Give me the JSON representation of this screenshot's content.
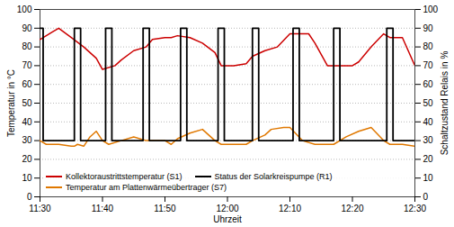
{
  "chart_data": {
    "type": "line",
    "xlabel": "Uhrzeit",
    "ylabel": "Temperatur in °C",
    "y2label": "Schaltzustand Relais in %",
    "xlim": [
      0,
      60
    ],
    "xticks": [
      {
        "value": 0,
        "label": "11:30"
      },
      {
        "value": 10,
        "label": "11:40"
      },
      {
        "value": 20,
        "label": "11:50"
      },
      {
        "value": 30,
        "label": "12:00"
      },
      {
        "value": 40,
        "label": "12:10"
      },
      {
        "value": 50,
        "label": "12:20"
      },
      {
        "value": 60,
        "label": "12:30"
      }
    ],
    "ylim": [
      0,
      100
    ],
    "yticks": [
      0,
      10,
      20,
      30,
      40,
      50,
      60,
      70,
      80,
      90,
      100
    ],
    "y2lim": [
      0,
      100
    ],
    "y2ticks": [
      0,
      10,
      20,
      30,
      40,
      50,
      60,
      70,
      80,
      90,
      100
    ],
    "grid": true,
    "legend": "lower left",
    "series": [
      {
        "name": "Kollektoraustrittstemperatur (S1)",
        "color": "#cc0000",
        "x": [
          0,
          1,
          2,
          3,
          5,
          7,
          9,
          10,
          12,
          13,
          15,
          17,
          18,
          20,
          21,
          22,
          24,
          26,
          28,
          29,
          31,
          33,
          34,
          36,
          38,
          40,
          41,
          43,
          44,
          46,
          48,
          50,
          51,
          53,
          55,
          56,
          58,
          60
        ],
        "values": [
          84,
          86,
          88,
          90,
          85,
          80,
          74,
          68,
          70,
          73,
          78,
          80,
          84,
          85,
          85,
          86,
          85,
          82,
          77,
          70,
          70,
          71,
          75,
          78,
          80,
          87,
          87,
          87,
          82,
          70,
          70,
          70,
          72,
          80,
          87,
          85,
          85,
          70
        ]
      },
      {
        "name": "Status der Solarkreispumpe (R1)",
        "color": "#000000",
        "x": [
          0,
          0.5,
          0.5,
          5.5,
          5.5,
          6.5,
          6.5,
          10.5,
          10.5,
          11.5,
          11.5,
          16.5,
          16.5,
          17.5,
          17.5,
          22.5,
          22.5,
          23.5,
          23.5,
          28.5,
          28.5,
          29.5,
          29.5,
          34,
          34,
          35,
          35,
          40.5,
          40.5,
          41.5,
          41.5,
          47,
          47,
          48,
          48,
          55.5,
          55.5,
          56.5,
          56.5,
          60
        ],
        "values": [
          90,
          90,
          30,
          30,
          90,
          90,
          30,
          30,
          90,
          90,
          30,
          30,
          90,
          90,
          30,
          30,
          90,
          90,
          30,
          30,
          90,
          90,
          30,
          30,
          90,
          90,
          30,
          30,
          90,
          90,
          30,
          30,
          90,
          90,
          30,
          30,
          90,
          90,
          30,
          30
        ]
      },
      {
        "name": "Temperatur am Plattenwärmeübertrager (S7)",
        "color": "#e07800",
        "x": [
          0,
          1,
          3,
          5,
          5.5,
          6,
          7,
          8,
          9,
          10,
          11,
          13,
          15,
          17,
          18,
          20,
          21,
          22,
          24,
          26,
          28,
          29,
          31,
          33,
          34,
          36,
          37,
          39,
          40,
          42,
          44,
          46,
          47,
          49,
          51,
          53,
          55,
          56,
          58,
          60
        ],
        "values": [
          30,
          28,
          28,
          27,
          27,
          28,
          27,
          32,
          35,
          30,
          28,
          30,
          32,
          30,
          30,
          30,
          28,
          31,
          34,
          36,
          30,
          28,
          28,
          28,
          30,
          33,
          36,
          37,
          37,
          30,
          28,
          28,
          28,
          32,
          35,
          37,
          30,
          28,
          28,
          27
        ]
      }
    ]
  }
}
